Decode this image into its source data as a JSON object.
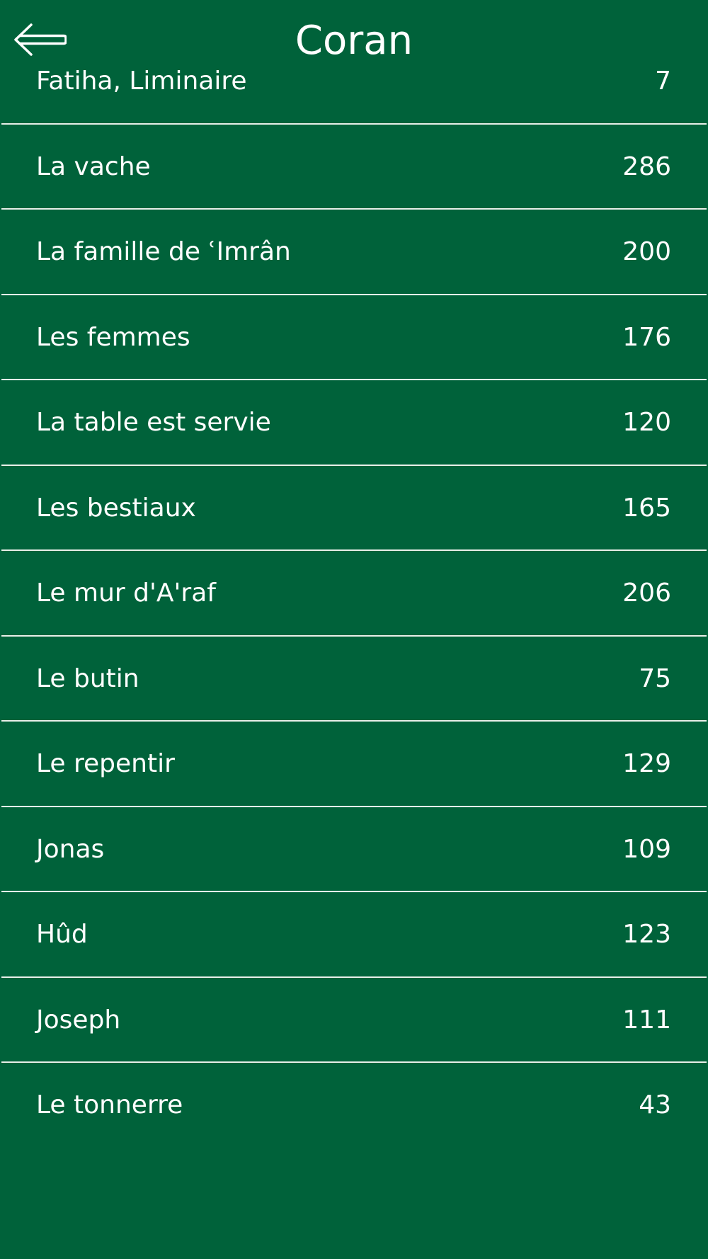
{
  "header": {
    "title": "Coran",
    "back_icon": "arrow-left-icon"
  },
  "surahs": [
    {
      "name": "Fatiha, Liminaire",
      "verses": "7"
    },
    {
      "name": "La vache",
      "verses": "286"
    },
    {
      "name": "La famille de ʿImrân",
      "verses": "200"
    },
    {
      "name": "Les femmes",
      "verses": "176"
    },
    {
      "name": "La table est servie",
      "verses": "120"
    },
    {
      "name": "Les bestiaux",
      "verses": "165"
    },
    {
      "name": "Le mur d'A'raf",
      "verses": "206"
    },
    {
      "name": "Le butin",
      "verses": "75"
    },
    {
      "name": "Le repentir",
      "verses": "129"
    },
    {
      "name": "Jonas",
      "verses": "109"
    },
    {
      "name": "Hûd",
      "verses": "123"
    },
    {
      "name": "Joseph",
      "verses": "111"
    },
    {
      "name": "Le tonnerre",
      "verses": "43"
    }
  ],
  "colors": {
    "background": "#00623A",
    "text": "#FFFFFF",
    "divider": "#E8EFE9"
  }
}
